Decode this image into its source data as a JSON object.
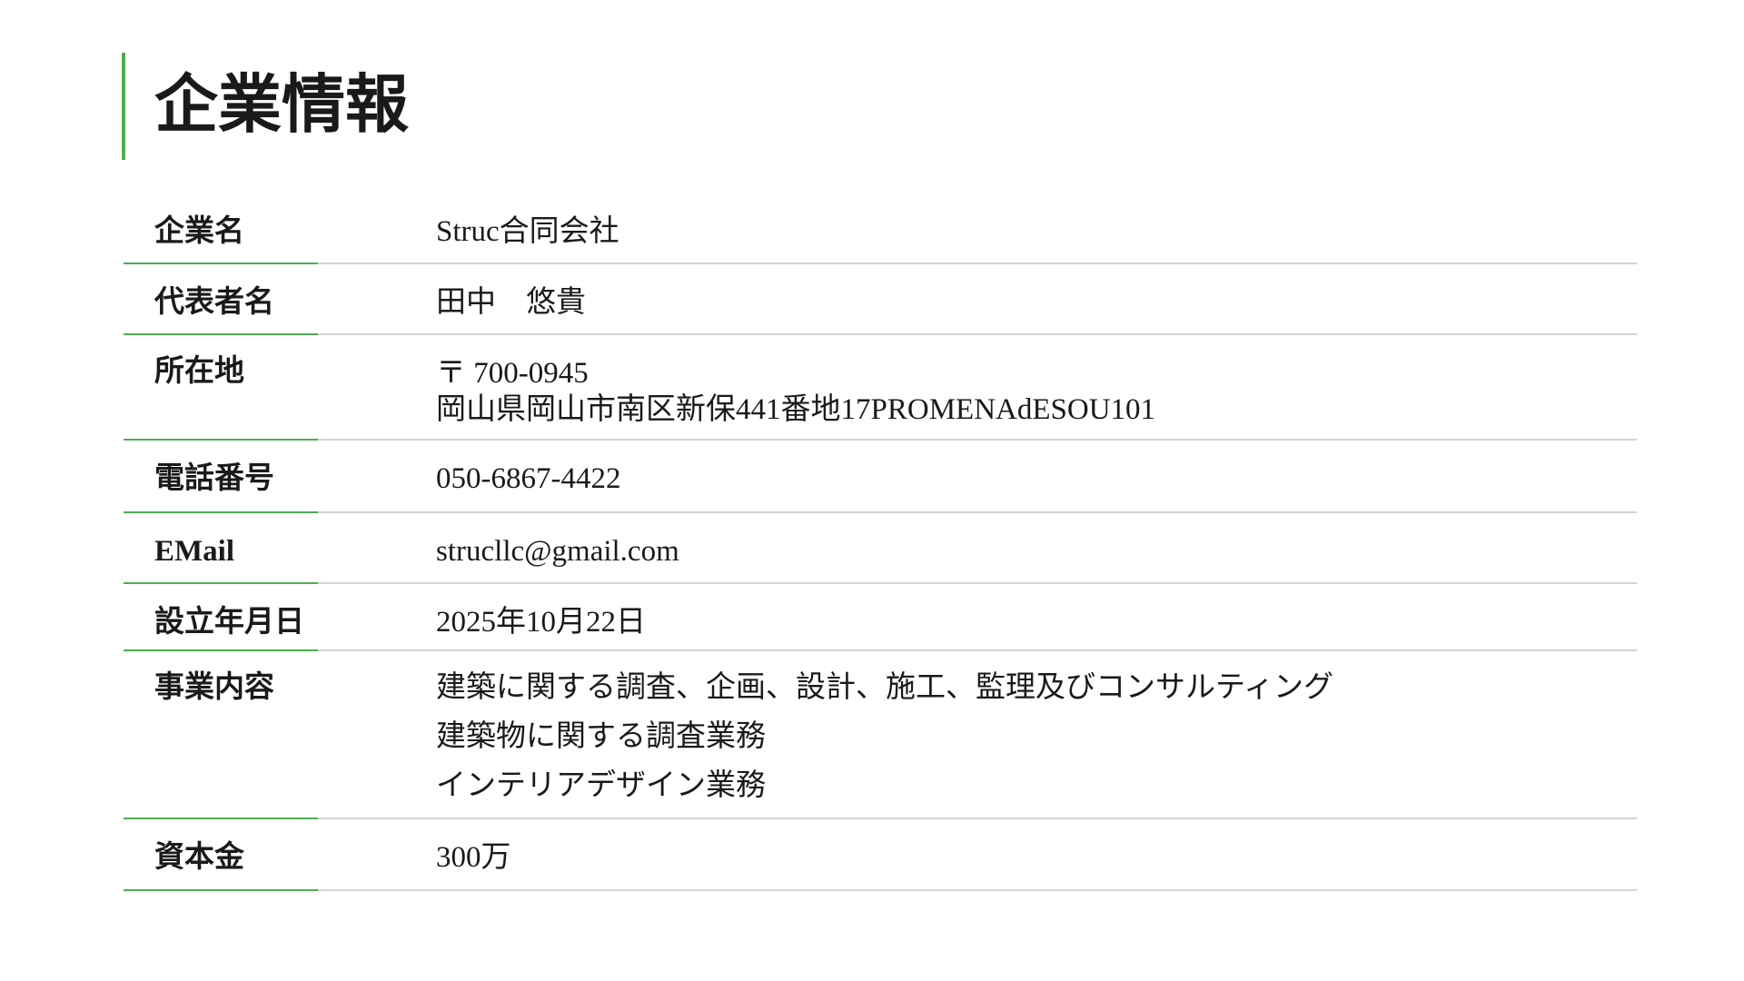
{
  "header": {
    "title": "企業情報"
  },
  "table": {
    "rows": [
      {
        "label": "企業名",
        "lines": [
          "Struc合同会社"
        ]
      },
      {
        "label": "代表者名",
        "lines": [
          "田中　悠貴"
        ]
      },
      {
        "label": "所在地",
        "lines": [
          "〒 700-0945",
          "岡山県岡山市南区新保441番地17PROMENAdESOU101"
        ]
      },
      {
        "label": "電話番号",
        "lines": [
          "050-6867-4422"
        ]
      },
      {
        "label": "EMail",
        "lines": [
          "strucllc@gmail.com"
        ]
      },
      {
        "label": "設立年月日",
        "lines": [
          "2025年10月22日"
        ]
      },
      {
        "label": "事業内容",
        "lines": [
          "建築に関する調査、企画、設計、施工、監理及びコンサルティング",
          "建築物に関する調査業務",
          "インテリアデザイン業務"
        ]
      },
      {
        "label": "資本金",
        "lines": [
          "300万"
        ]
      }
    ]
  }
}
